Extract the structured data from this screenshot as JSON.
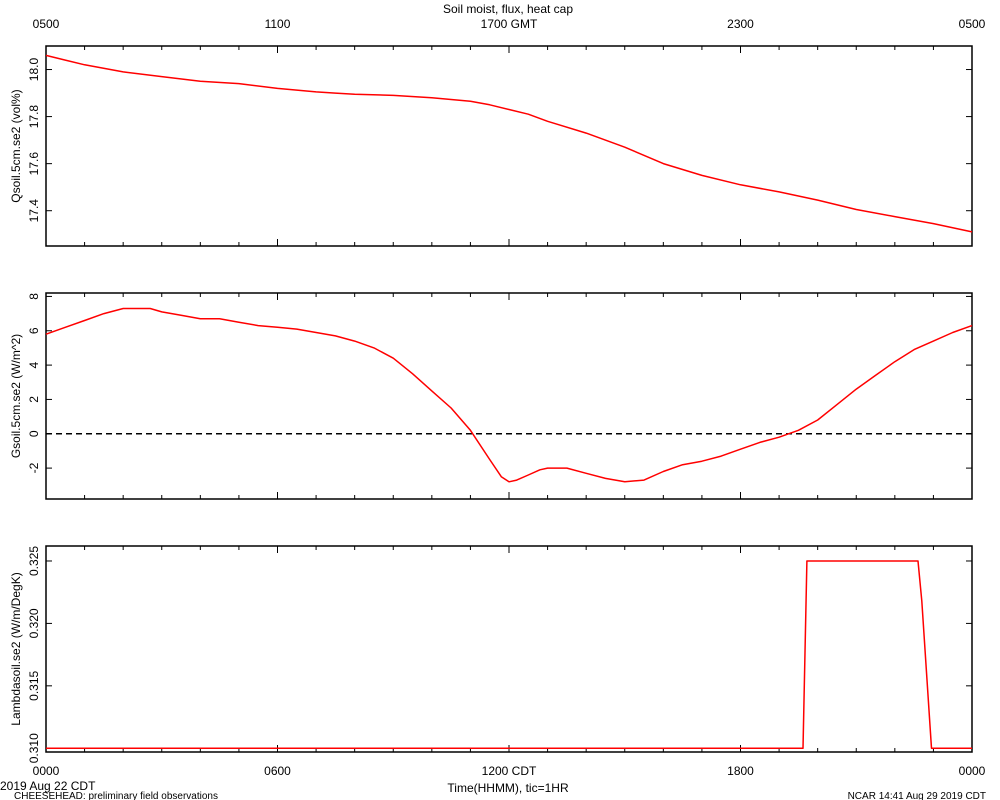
{
  "title": "Soil moist, flux, heat cap",
  "top_axis": {
    "ticks": [
      "0500",
      "1100",
      "1700 GMT",
      "2300",
      "0500"
    ]
  },
  "bottom_axis": {
    "ticks": [
      "0000",
      "0600",
      "1200 CDT",
      "1800",
      "0000"
    ],
    "label": "Time(HHMM), tic=1HR"
  },
  "footer": {
    "date": "2019 Aug 22 CDT",
    "project": "CHEESEHEAD: preliminary field observations",
    "credit": "NCAR 14:41 Aug 29 2019 CDT"
  },
  "colors": {
    "series": "#ff0000",
    "axis": "#000000",
    "zero_line": "#000000"
  },
  "chart_data": [
    {
      "type": "line",
      "ylabel": "Qsoil.5cm.se2 (vol%)",
      "ylim": [
        17.25,
        18.1
      ],
      "yticks": [
        17.4,
        17.6,
        17.8,
        18.0
      ],
      "ytick_labels": [
        "17.4",
        "17.6",
        "17.8",
        "18.0"
      ],
      "x_unit": "hours since 0000 CDT",
      "xlim": [
        0,
        24
      ],
      "series": [
        {
          "x": [
            0,
            0.5,
            1,
            2,
            3,
            4,
            5,
            6,
            7,
            7.5,
            8,
            9,
            10,
            11,
            11.5,
            12,
            12.5,
            13,
            14,
            15,
            16,
            17,
            18,
            19,
            20,
            21,
            22,
            23,
            24
          ],
          "y": [
            18.06,
            18.04,
            18.02,
            17.99,
            17.97,
            17.95,
            17.94,
            17.92,
            17.905,
            17.9,
            17.895,
            17.89,
            17.88,
            17.865,
            17.85,
            17.83,
            17.81,
            17.78,
            17.73,
            17.67,
            17.6,
            17.55,
            17.51,
            17.48,
            17.445,
            17.405,
            17.375,
            17.345,
            17.31
          ]
        }
      ]
    },
    {
      "type": "line",
      "ylabel": "Gsoil.5cm.se2 (W/m^2)",
      "ylim": [
        -3.8,
        8.2
      ],
      "yticks": [
        -2,
        0,
        2,
        4,
        6,
        8
      ],
      "ytick_labels": [
        "-2",
        "0",
        "2",
        "4",
        "6",
        "8"
      ],
      "zero_line": true,
      "x_unit": "hours since 0000 CDT",
      "xlim": [
        0,
        24
      ],
      "series": [
        {
          "x": [
            0,
            0.5,
            1,
            1.5,
            2,
            2.7,
            3,
            3.5,
            4,
            4.5,
            5,
            5.5,
            6,
            6.5,
            7,
            7.5,
            8,
            8.5,
            9,
            9.5,
            10,
            10.5,
            11,
            11.5,
            11.8,
            12,
            12.2,
            12.5,
            12.8,
            13,
            13.5,
            14,
            14.5,
            15,
            15.5,
            16,
            16.5,
            17,
            17.5,
            18,
            18.5,
            19,
            19.5,
            20,
            20.5,
            21,
            21.5,
            22,
            22.5,
            23,
            23.5,
            24
          ],
          "y": [
            5.8,
            6.2,
            6.6,
            7.0,
            7.3,
            7.3,
            7.1,
            6.9,
            6.7,
            6.7,
            6.5,
            6.3,
            6.2,
            6.1,
            5.9,
            5.7,
            5.4,
            5.0,
            4.4,
            3.5,
            2.5,
            1.5,
            0.2,
            -1.5,
            -2.5,
            -2.8,
            -2.7,
            -2.4,
            -2.1,
            -2.0,
            -2.0,
            -2.3,
            -2.6,
            -2.8,
            -2.7,
            -2.2,
            -1.8,
            -1.6,
            -1.3,
            -0.9,
            -0.5,
            -0.2,
            0.2,
            0.8,
            1.7,
            2.6,
            3.4,
            4.2,
            4.9,
            5.4,
            5.9,
            6.3
          ]
        }
      ]
    },
    {
      "type": "line",
      "ylabel": "Lambdasoil.se2 (W/m/DegK)",
      "ylim": [
        0.3097,
        0.3262
      ],
      "yticks": [
        0.31,
        0.315,
        0.32,
        0.325
      ],
      "ytick_labels": [
        "0.310",
        "0.315",
        "0.320",
        "0.325"
      ],
      "x_unit": "hours since 0000 CDT",
      "xlim": [
        0,
        24
      ],
      "series": [
        {
          "x": [
            0,
            19.62,
            19.72,
            22.6,
            22.7,
            22.95,
            24
          ],
          "y": [
            0.31,
            0.31,
            0.325,
            0.325,
            0.3218,
            0.31,
            0.31
          ]
        }
      ]
    }
  ]
}
